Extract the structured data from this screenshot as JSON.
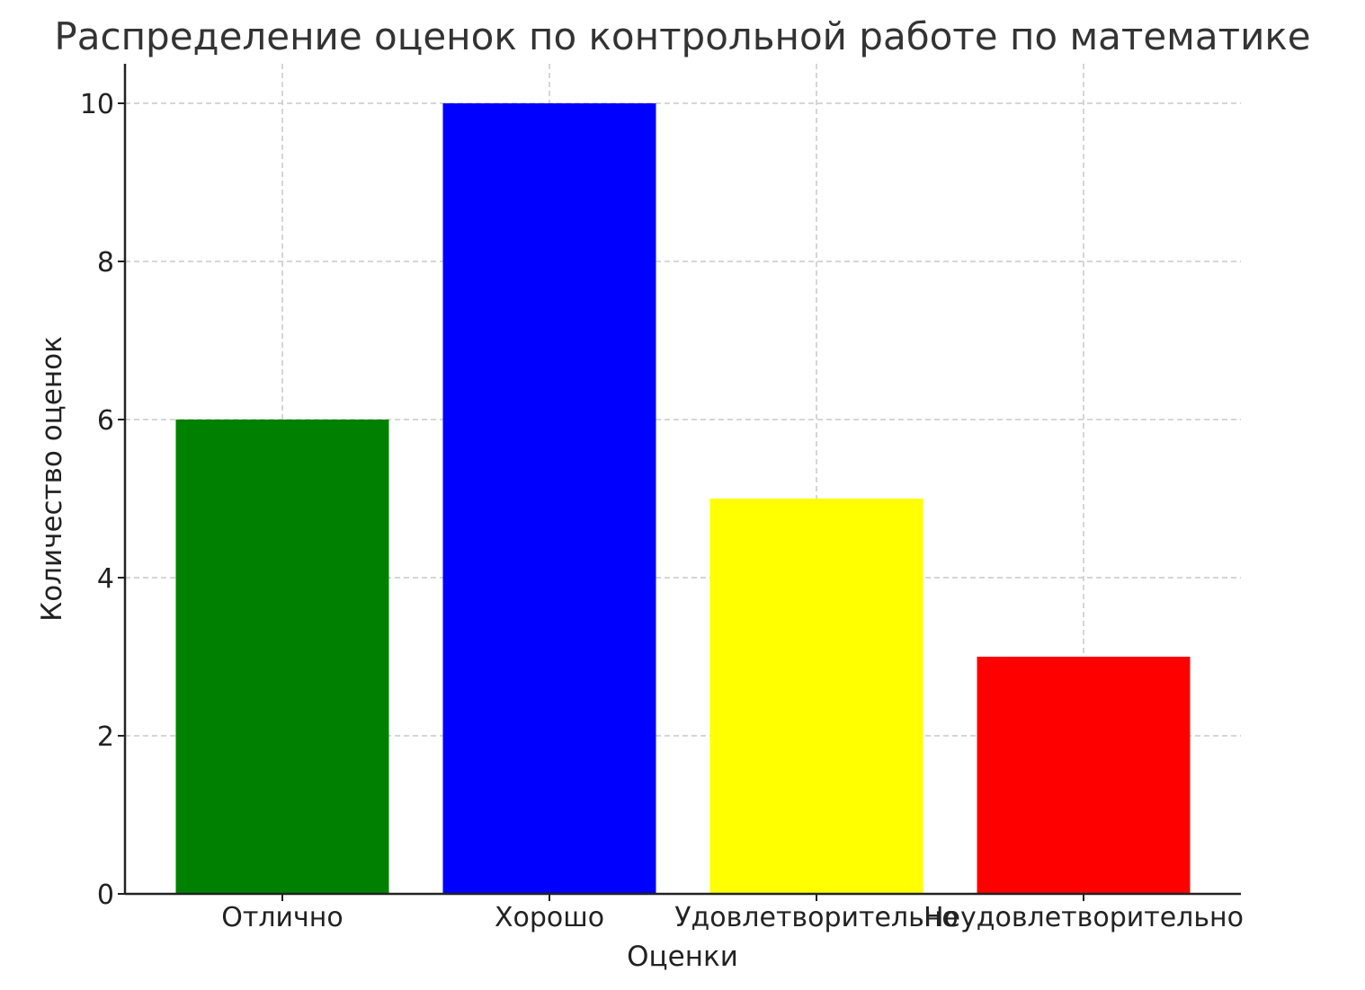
{
  "chart_data": {
    "type": "bar",
    "title": "Распределение оценок по контрольной работе по математике",
    "xlabel": "Оценки",
    "ylabel": "Количество оценок",
    "categories": [
      "Отлично",
      "Хорошо",
      "Удовлетворительно",
      "Неудовлетворительно"
    ],
    "values": [
      6,
      10,
      5,
      3
    ],
    "colors": [
      "#008000",
      "#0000ff",
      "#ffff00",
      "#ff0000"
    ],
    "ylim": [
      0,
      10.5
    ],
    "yticks": [
      0,
      2,
      4,
      6,
      8,
      10
    ],
    "grid": true
  }
}
